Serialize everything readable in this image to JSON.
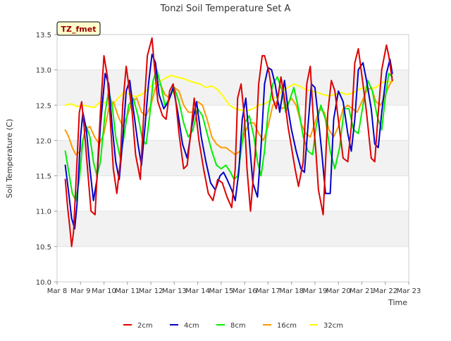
{
  "chart_data": {
    "type": "line",
    "title": "Tonzi Soil Temperature Set A",
    "xlabel": "Time",
    "ylabel": "Soil Temperature (C)",
    "annotation": "TZ_fmet",
    "xlim": [
      8,
      23
    ],
    "ylim": [
      10.0,
      13.5
    ],
    "x_ticks": [
      8,
      9,
      10,
      11,
      12,
      13,
      14,
      15,
      16,
      17,
      18,
      19,
      20,
      21,
      22,
      23
    ],
    "x_tick_labels": [
      "Mar 8",
      "Mar 9",
      "Mar 10",
      "Mar 11",
      "Mar 12",
      "Mar 13",
      "Mar 14",
      "Mar 15",
      "Mar 16",
      "Mar 17",
      "Mar 18",
      "Mar 19",
      "Mar 20",
      "Mar 21",
      "Mar 22",
      "Mar 23"
    ],
    "y_ticks": [
      10.0,
      10.5,
      11.0,
      11.5,
      12.0,
      12.5,
      13.0,
      13.5
    ],
    "y_tick_labels": [
      "10.0",
      "10.5",
      "11.0",
      "11.5",
      "12.0",
      "12.5",
      "13.0",
      "13.5"
    ],
    "grid": "horizontal bands",
    "legend_position": "bottom",
    "series": [
      {
        "name": "2cm",
        "color": "#dd0000",
        "x": [
          8.35,
          8.45,
          8.55,
          8.62,
          8.7,
          8.82,
          8.95,
          9.05,
          9.15,
          9.3,
          9.45,
          9.62,
          9.72,
          9.85,
          10.0,
          10.15,
          10.25,
          10.4,
          10.55,
          10.7,
          10.8,
          10.95,
          11.05,
          11.2,
          11.35,
          11.55,
          11.7,
          11.85,
          12.05,
          12.15,
          12.3,
          12.5,
          12.65,
          12.8,
          12.95,
          13.05,
          13.2,
          13.4,
          13.55,
          13.7,
          13.85,
          14.05,
          14.25,
          14.45,
          14.65,
          14.85,
          15.05,
          15.25,
          15.45,
          15.6,
          15.7,
          15.85,
          16.0,
          16.1,
          16.25,
          16.45,
          16.6,
          16.75,
          16.85,
          17.05,
          17.2,
          17.35,
          17.55,
          17.7,
          17.85,
          18.0,
          18.15,
          18.3,
          18.5,
          18.65,
          18.8,
          18.95,
          19.05,
          19.15,
          19.35,
          19.55,
          19.7,
          19.85,
          20.05,
          20.2,
          20.4,
          20.55,
          20.7,
          20.85,
          21.05,
          21.2,
          21.4,
          21.55,
          21.7,
          21.85,
          22.05,
          22.15,
          22.3
        ],
        "y": [
          11.45,
          11.05,
          10.75,
          10.5,
          10.7,
          11.5,
          12.4,
          12.55,
          12.2,
          11.6,
          11.0,
          10.95,
          11.6,
          12.4,
          13.2,
          12.9,
          12.4,
          11.6,
          11.25,
          11.7,
          12.5,
          13.05,
          12.8,
          12.4,
          11.8,
          11.45,
          12.4,
          13.2,
          13.45,
          13.05,
          12.55,
          12.35,
          12.3,
          12.7,
          12.8,
          12.6,
          12.1,
          11.6,
          11.65,
          12.1,
          12.6,
          12.0,
          11.6,
          11.25,
          11.15,
          11.45,
          11.4,
          11.2,
          11.05,
          11.6,
          12.6,
          12.8,
          12.3,
          11.6,
          11.0,
          11.8,
          12.8,
          13.2,
          13.2,
          12.95,
          12.6,
          12.45,
          12.9,
          12.6,
          12.2,
          11.9,
          11.6,
          11.35,
          11.7,
          12.8,
          13.05,
          12.2,
          11.8,
          11.3,
          10.95,
          12.4,
          12.85,
          12.7,
          12.15,
          11.75,
          11.7,
          12.2,
          13.1,
          13.3,
          12.8,
          12.4,
          11.75,
          11.7,
          12.4,
          13.0,
          13.35,
          13.2,
          12.85
        ]
      },
      {
        "name": "4cm",
        "color": "#0000cc",
        "x": [
          8.35,
          8.5,
          8.62,
          8.75,
          8.85,
          9.0,
          9.1,
          9.25,
          9.4,
          9.55,
          9.7,
          9.85,
          10.05,
          10.2,
          10.35,
          10.5,
          10.65,
          10.8,
          10.95,
          11.1,
          11.25,
          11.45,
          11.6,
          11.75,
          11.9,
          12.05,
          12.2,
          12.35,
          12.55,
          12.75,
          12.95,
          13.15,
          13.35,
          13.55,
          13.75,
          13.95,
          14.15,
          14.35,
          14.55,
          14.75,
          14.95,
          15.1,
          15.25,
          15.45,
          15.6,
          15.75,
          15.9,
          16.05,
          16.2,
          16.35,
          16.55,
          16.7,
          16.85,
          17.0,
          17.15,
          17.3,
          17.5,
          17.7,
          17.85,
          18.0,
          18.2,
          18.4,
          18.55,
          18.7,
          18.85,
          19.0,
          19.15,
          19.3,
          19.45,
          19.65,
          19.8,
          20.0,
          20.2,
          20.4,
          20.55,
          20.7,
          20.85,
          21.05,
          21.2,
          21.4,
          21.55,
          21.7,
          21.85,
          22.05,
          22.2,
          22.3
        ],
        "y": [
          11.65,
          11.25,
          10.9,
          10.75,
          11.1,
          12.05,
          12.4,
          12.15,
          11.6,
          11.15,
          11.45,
          12.2,
          12.95,
          12.8,
          12.2,
          11.7,
          11.45,
          12.0,
          12.7,
          12.85,
          12.45,
          11.95,
          11.65,
          12.2,
          12.8,
          13.22,
          13.1,
          12.65,
          12.45,
          12.55,
          12.75,
          12.4,
          11.95,
          11.75,
          12.2,
          12.55,
          12.05,
          11.7,
          11.4,
          11.3,
          11.5,
          11.55,
          11.45,
          11.3,
          11.15,
          11.55,
          12.3,
          12.6,
          12.0,
          11.4,
          11.2,
          11.9,
          12.8,
          13.03,
          13.0,
          12.8,
          12.4,
          12.85,
          12.45,
          12.15,
          11.85,
          11.6,
          11.55,
          12.2,
          12.8,
          12.75,
          12.3,
          11.8,
          11.25,
          11.25,
          12.3,
          12.7,
          12.55,
          12.1,
          11.85,
          12.3,
          13.0,
          13.1,
          12.85,
          12.45,
          11.95,
          11.9,
          12.4,
          12.95,
          13.15,
          12.95
        ]
      },
      {
        "name": "8cm",
        "color": "#00ee00",
        "x": [
          8.35,
          8.5,
          8.65,
          8.8,
          8.95,
          9.1,
          9.25,
          9.4,
          9.55,
          9.7,
          9.85,
          10.05,
          10.2,
          10.35,
          10.5,
          10.7,
          10.85,
          11.05,
          11.25,
          11.45,
          11.65,
          11.8,
          11.95,
          12.1,
          12.25,
          12.45,
          12.6,
          12.8,
          13.0,
          13.2,
          13.4,
          13.6,
          13.8,
          14.0,
          14.2,
          14.4,
          14.6,
          14.8,
          15.0,
          15.2,
          15.4,
          15.55,
          15.7,
          15.85,
          16.0,
          16.2,
          16.4,
          16.55,
          16.7,
          16.85,
          17.0,
          17.2,
          17.4,
          17.6,
          17.75,
          17.9,
          18.1,
          18.3,
          18.5,
          18.7,
          18.9,
          19.05,
          19.25,
          19.45,
          19.65,
          19.85,
          20.05,
          20.25,
          20.45,
          20.65,
          20.85,
          21.05,
          21.25,
          21.45,
          21.65,
          21.85,
          22.0,
          22.15,
          22.3
        ],
        "y": [
          11.85,
          11.55,
          11.25,
          11.15,
          11.45,
          12.0,
          12.2,
          12.05,
          11.7,
          11.5,
          11.7,
          12.4,
          12.7,
          12.5,
          12.05,
          11.75,
          12.05,
          12.5,
          12.6,
          12.35,
          12.0,
          11.95,
          12.35,
          12.85,
          13.0,
          12.75,
          12.5,
          12.6,
          12.75,
          12.55,
          12.25,
          12.05,
          12.15,
          12.45,
          12.35,
          12.1,
          11.85,
          11.65,
          11.6,
          11.65,
          11.55,
          11.45,
          11.5,
          11.85,
          12.25,
          12.35,
          12.05,
          11.7,
          11.5,
          11.85,
          12.4,
          12.8,
          12.9,
          12.7,
          12.4,
          12.55,
          12.75,
          12.45,
          12.05,
          11.85,
          11.8,
          12.2,
          12.5,
          12.3,
          11.85,
          11.6,
          11.9,
          12.45,
          12.45,
          12.15,
          12.1,
          12.5,
          12.85,
          12.7,
          12.35,
          12.15,
          12.6,
          12.95,
          12.9
        ]
      },
      {
        "name": "16cm",
        "color": "#ff9900",
        "x": [
          8.35,
          8.5,
          8.65,
          8.8,
          9.0,
          9.2,
          9.4,
          9.6,
          9.8,
          10.0,
          10.2,
          10.4,
          10.6,
          10.8,
          11.0,
          11.2,
          11.4,
          11.6,
          11.8,
          12.0,
          12.2,
          12.4,
          12.6,
          12.8,
          13.0,
          13.2,
          13.4,
          13.6,
          13.8,
          14.0,
          14.2,
          14.4,
          14.6,
          14.8,
          15.0,
          15.2,
          15.4,
          15.6,
          15.8,
          16.0,
          16.2,
          16.4,
          16.6,
          16.8,
          17.0,
          17.2,
          17.4,
          17.6,
          17.8,
          18.0,
          18.2,
          18.4,
          18.6,
          18.8,
          19.0,
          19.2,
          19.4,
          19.6,
          19.8,
          20.0,
          20.2,
          20.4,
          20.6,
          20.8,
          21.0,
          21.2,
          21.4,
          21.6,
          21.8,
          22.0,
          22.2,
          22.3
        ],
        "y": [
          12.15,
          12.05,
          11.9,
          11.8,
          11.85,
          12.15,
          12.2,
          12.05,
          11.95,
          12.1,
          12.45,
          12.55,
          12.35,
          12.2,
          12.35,
          12.55,
          12.6,
          12.4,
          12.35,
          12.5,
          12.75,
          12.8,
          12.65,
          12.6,
          12.75,
          12.7,
          12.5,
          12.4,
          12.4,
          12.55,
          12.5,
          12.3,
          12.05,
          11.95,
          11.9,
          11.9,
          11.85,
          11.8,
          11.85,
          12.1,
          12.25,
          12.25,
          12.1,
          12.0,
          12.2,
          12.5,
          12.55,
          12.45,
          12.5,
          12.6,
          12.5,
          12.25,
          12.1,
          12.05,
          12.25,
          12.45,
          12.4,
          12.15,
          12.05,
          12.2,
          12.45,
          12.5,
          12.45,
          12.4,
          12.55,
          12.7,
          12.75,
          12.55,
          12.5,
          12.65,
          12.8,
          12.85
        ]
      },
      {
        "name": "32cm",
        "color": "#ffff00",
        "x": [
          8.35,
          8.6,
          8.85,
          9.1,
          9.35,
          9.6,
          9.85,
          10.1,
          10.35,
          10.6,
          10.85,
          11.1,
          11.35,
          11.6,
          11.85,
          12.1,
          12.35,
          12.6,
          12.85,
          13.1,
          13.35,
          13.6,
          13.85,
          14.1,
          14.35,
          14.6,
          14.85,
          15.1,
          15.35,
          15.6,
          15.85,
          16.1,
          16.35,
          16.6,
          16.85,
          17.1,
          17.35,
          17.6,
          17.85,
          18.1,
          18.35,
          18.6,
          18.85,
          19.1,
          19.35,
          19.6,
          19.85,
          20.1,
          20.35,
          20.6,
          20.85,
          21.1,
          21.35,
          21.6,
          21.85,
          22.1,
          22.3
        ],
        "y": [
          12.5,
          12.52,
          12.48,
          12.5,
          12.48,
          12.47,
          12.55,
          12.53,
          12.5,
          12.6,
          12.68,
          12.65,
          12.62,
          12.65,
          12.72,
          12.8,
          12.83,
          12.88,
          12.92,
          12.9,
          12.88,
          12.85,
          12.82,
          12.8,
          12.75,
          12.77,
          12.72,
          12.62,
          12.5,
          12.45,
          12.43,
          12.42,
          12.45,
          12.5,
          12.52,
          12.57,
          12.62,
          12.7,
          12.75,
          12.8,
          12.77,
          12.72,
          12.7,
          12.68,
          12.65,
          12.63,
          12.65,
          12.68,
          12.65,
          12.67,
          12.72,
          12.75,
          12.73,
          12.75,
          12.82,
          12.84,
          12.83
        ]
      }
    ]
  }
}
